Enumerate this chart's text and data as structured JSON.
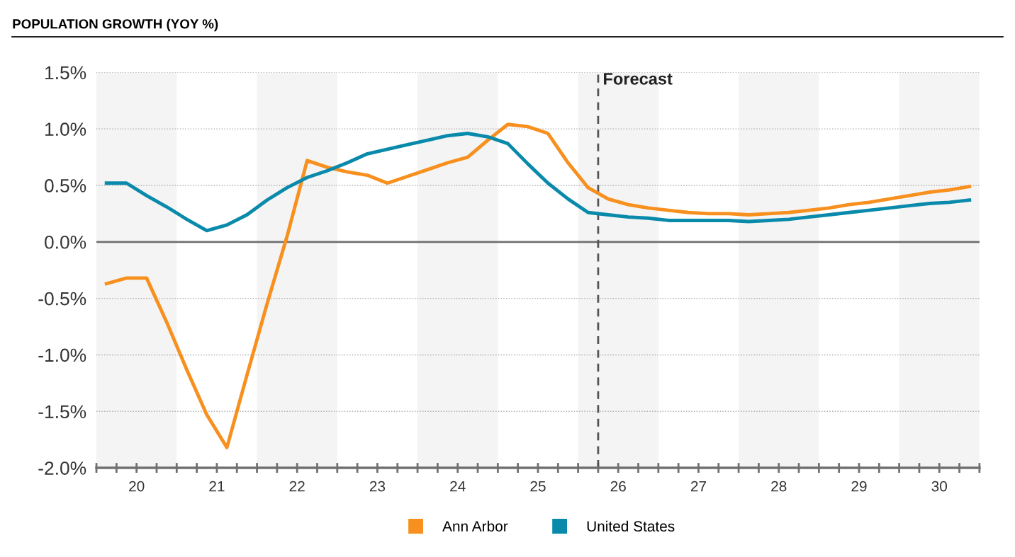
{
  "chart_data": {
    "type": "line",
    "title": "POPULATION GROWTH (YOY %)",
    "x": [
      19.625,
      19.875,
      20.125,
      20.375,
      20.625,
      20.875,
      21.125,
      21.375,
      21.625,
      21.875,
      22.125,
      22.375,
      22.625,
      22.875,
      23.125,
      23.375,
      23.625,
      23.875,
      24.125,
      24.375,
      24.625,
      24.875,
      25.125,
      25.375,
      25.625,
      25.875,
      26.125,
      26.375,
      26.625,
      26.875,
      27.125,
      27.375,
      27.625,
      27.875,
      28.125,
      28.375,
      28.625,
      28.875,
      29.125,
      29.375,
      29.625,
      29.875,
      30.125,
      30.375
    ],
    "series": [
      {
        "name": "Ann Arbor",
        "color": "#f7901e",
        "values": [
          -0.37,
          -0.32,
          -0.32,
          -0.71,
          -1.13,
          -1.53,
          -1.82,
          -1.18,
          -0.55,
          0.05,
          0.72,
          0.66,
          0.62,
          0.59,
          0.52,
          0.58,
          0.64,
          0.7,
          0.75,
          0.9,
          1.04,
          1.02,
          0.96,
          0.7,
          0.48,
          0.38,
          0.33,
          0.3,
          0.28,
          0.26,
          0.25,
          0.25,
          0.24,
          0.25,
          0.26,
          0.28,
          0.3,
          0.33,
          0.35,
          0.38,
          0.41,
          0.44,
          0.46,
          0.49
        ]
      },
      {
        "name": "United States",
        "color": "#0a8aab",
        "values": [
          0.52,
          0.52,
          0.41,
          0.31,
          0.2,
          0.1,
          0.15,
          0.24,
          0.37,
          0.48,
          0.57,
          0.63,
          0.7,
          0.78,
          0.82,
          0.86,
          0.9,
          0.94,
          0.96,
          0.93,
          0.87,
          0.69,
          0.52,
          0.38,
          0.26,
          0.24,
          0.22,
          0.21,
          0.19,
          0.19,
          0.19,
          0.19,
          0.18,
          0.19,
          0.2,
          0.22,
          0.24,
          0.26,
          0.28,
          0.3,
          0.32,
          0.34,
          0.35,
          0.37
        ]
      }
    ],
    "xlim": [
      19.5,
      30.5
    ],
    "xticks": [
      {
        "value": 19.5,
        "label": null
      },
      {
        "value": 19.75,
        "label": null
      },
      20,
      {
        "value": 20.25,
        "label": null
      },
      {
        "value": 20.5,
        "label": null
      },
      {
        "value": 20.75,
        "label": null
      },
      21,
      {
        "value": 21.25,
        "label": null
      },
      {
        "value": 21.5,
        "label": null
      },
      {
        "value": 21.75,
        "label": null
      },
      22,
      {
        "value": 22.25,
        "label": null
      },
      {
        "value": 22.5,
        "label": null
      },
      {
        "value": 22.75,
        "label": null
      },
      23,
      {
        "value": 23.25,
        "label": null
      },
      {
        "value": 23.5,
        "label": null
      },
      {
        "value": 23.75,
        "label": null
      },
      24,
      {
        "value": 24.25,
        "label": null
      },
      {
        "value": 24.5,
        "label": null
      },
      {
        "value": 24.75,
        "label": null
      },
      25,
      {
        "value": 25.25,
        "label": null
      },
      {
        "value": 25.5,
        "label": null
      },
      {
        "value": 25.75,
        "label": null
      },
      26,
      {
        "value": 26.25,
        "label": null
      },
      {
        "value": 26.5,
        "label": null
      },
      {
        "value": 26.75,
        "label": null
      },
      27,
      {
        "value": 27.25,
        "label": null
      },
      {
        "value": 27.5,
        "label": null
      },
      {
        "value": 27.75,
        "label": null
      },
      28,
      {
        "value": 28.25,
        "label": null
      },
      {
        "value": 28.5,
        "label": null
      },
      {
        "value": 28.75,
        "label": null
      },
      29,
      {
        "value": 29.25,
        "label": null
      },
      {
        "value": 29.5,
        "label": null
      },
      {
        "value": 29.75,
        "label": null
      },
      30,
      {
        "value": 30.25,
        "label": null
      },
      {
        "value": 30.5,
        "label": null
      }
    ],
    "ylim": [
      -2.0,
      1.5
    ],
    "yticks": [
      {
        "value": -2.0,
        "label": "-2.0%"
      },
      {
        "value": -1.5,
        "label": "-1.5%"
      },
      {
        "value": -1.0,
        "label": "-1.0%"
      },
      {
        "value": -0.5,
        "label": "-0.5%"
      },
      {
        "value": 0.0,
        "label": "0.0%"
      },
      {
        "value": 0.5,
        "label": "0.5%"
      },
      {
        "value": 1.0,
        "label": "1.0%"
      },
      {
        "value": 1.5,
        "label": "1.5%"
      }
    ],
    "grid": "y",
    "legend": "bottom",
    "marker": "none",
    "line_style": "solid",
    "ref_lines": [
      {
        "axis": "y",
        "value": 0,
        "label": null,
        "color": "#707070",
        "line_style": "solid"
      },
      {
        "axis": "x",
        "value": 25.75,
        "label": "Forecast",
        "color": "#555555",
        "line_style": "dashed"
      }
    ],
    "bands": [
      {
        "axis": "x",
        "from": 19.5,
        "to": 20.5,
        "label": null,
        "color": "#f4f4f4"
      },
      {
        "axis": "x",
        "from": 21.5,
        "to": 22.5,
        "label": null,
        "color": "#f4f4f4"
      },
      {
        "axis": "x",
        "from": 23.5,
        "to": 24.5,
        "label": null,
        "color": "#f4f4f4"
      },
      {
        "axis": "x",
        "from": 25.5,
        "to": 26.5,
        "label": null,
        "color": "#f4f4f4"
      },
      {
        "axis": "x",
        "from": 27.5,
        "to": 28.5,
        "label": null,
        "color": "#f4f4f4"
      },
      {
        "axis": "x",
        "from": 29.5,
        "to": 30.5,
        "label": null,
        "color": "#f4f4f4"
      }
    ]
  }
}
